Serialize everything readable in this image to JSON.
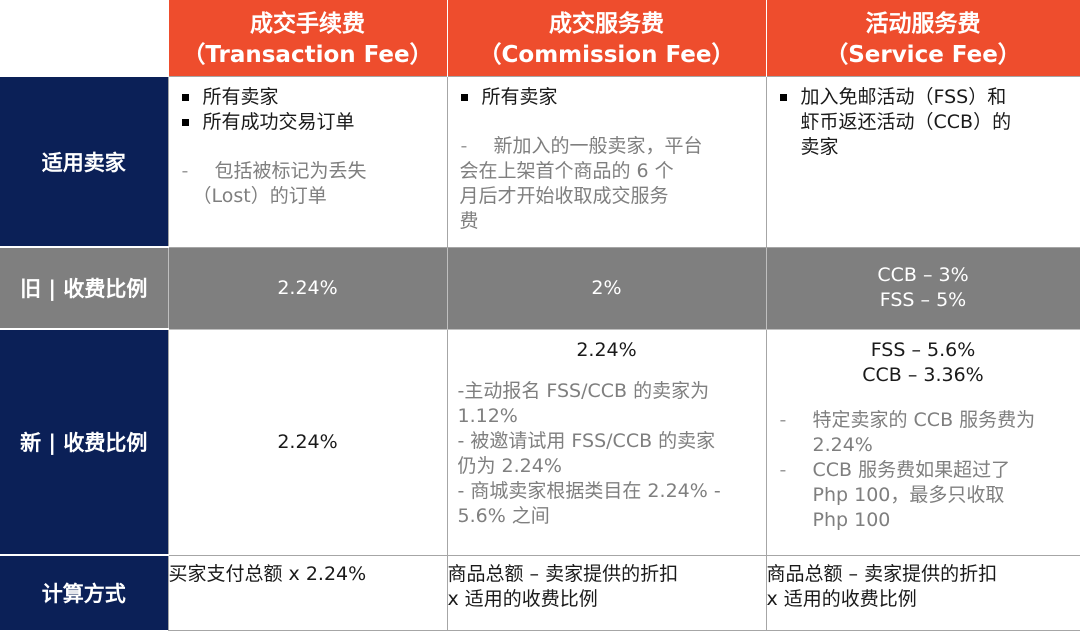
{
  "columns": [
    {
      "title_zh": "成交手续费",
      "title_en": "（Transaction Fee）"
    },
    {
      "title_zh": "成交服务费",
      "title_en": "（Commission Fee）"
    },
    {
      "title_zh": "活动服务费",
      "title_en": "（Service Fee）"
    }
  ],
  "rows": {
    "eligible": {
      "label": "适用卖家",
      "transaction": {
        "bullets": [
          "所有卖家",
          "所有成功交易订单"
        ],
        "note_line1": "包括被标记为丢失",
        "note_line2": "（Lost）的订单"
      },
      "commission": {
        "bullets": [
          "所有卖家"
        ],
        "note_lines": [
          "新加入的一般卖家，平台",
          "会在上架首个商品的 6 个",
          "月后才开始收取成交服务",
          "费"
        ]
      },
      "service": {
        "bullet_lines": [
          "加入免邮活动（FSS）和",
          "虾币返还活动（CCB）的",
          "卖家"
        ]
      }
    },
    "old_rate": {
      "label": "旧 | 收费比例",
      "transaction": "2.24%",
      "commission": "2%",
      "service_lines": [
        "CCB – 3%",
        "FSS – 5%"
      ]
    },
    "new_rate": {
      "label": "新 | 收费比例",
      "transaction": "2.24%",
      "commission": {
        "headline": "2.24%",
        "notes": [
          "-主动报名 FSS/CCB 的卖家为",
          "1.12%",
          "- 被邀请试用 FSS/CCB 的卖家",
          "仍为 2.24%",
          "- 商城卖家根据类目在 2.24% -",
          "5.6% 之间"
        ]
      },
      "service": {
        "headlines": [
          "FSS – 5.6%",
          "CCB – 3.36%"
        ],
        "note1": [
          "特定卖家的 CCB 服务费为",
          "2.24%"
        ],
        "note2": [
          "CCB 服务费如果超过了",
          "Php 100，最多只收取",
          "Php 100"
        ]
      }
    },
    "calc": {
      "label": "计算方式",
      "transaction": "买家支付总额 x 2.24%",
      "commission_lines": [
        "商品总额 – 卖家提供的折扣",
        "x 适用的收费比例"
      ],
      "service_lines": [
        "商品总额 – 卖家提供的折扣",
        "x 适用的收费比例"
      ]
    }
  },
  "colors": {
    "header_orange": "#ee4d2d",
    "row_navy": "#0b2057",
    "row_gray": "#7f7f7f"
  }
}
